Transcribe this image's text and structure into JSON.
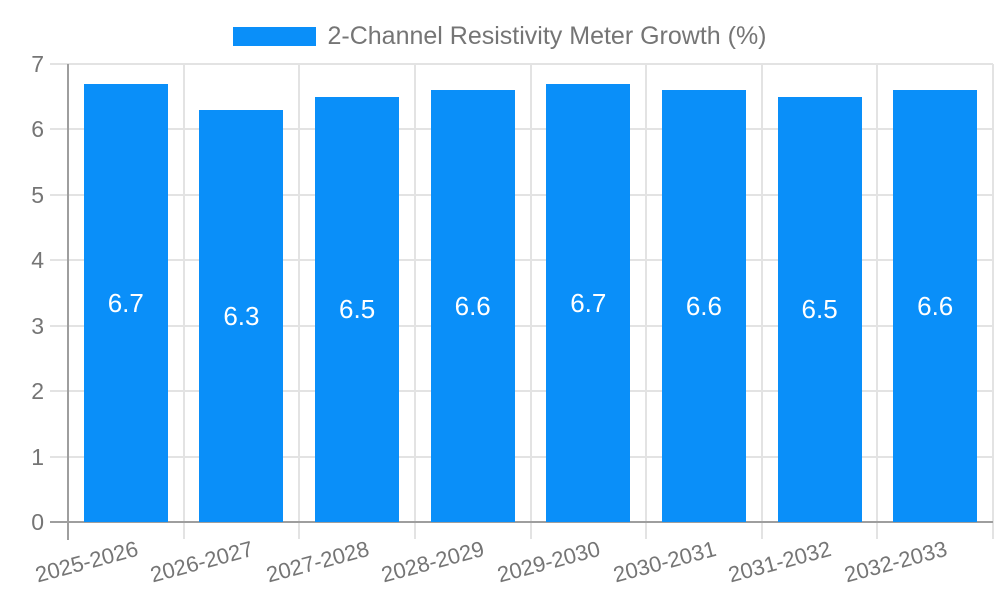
{
  "chart_data": {
    "type": "bar",
    "title": "2-Channel Resistivity Meter Growth (%)",
    "categories": [
      "2025-2026",
      "2026-2027",
      "2027-2028",
      "2028-2029",
      "2029-2030",
      "2030-2031",
      "2031-2032",
      "2032-2033"
    ],
    "values": [
      6.7,
      6.3,
      6.5,
      6.6,
      6.7,
      6.6,
      6.5,
      6.6
    ],
    "bar_labels": [
      "6.7",
      "6.3",
      "6.5",
      "6.6",
      "6.7",
      "6.6",
      "6.5",
      "6.6"
    ],
    "xlabel": "",
    "ylabel": "",
    "ylim": [
      0,
      7
    ],
    "yticks": [
      0,
      1,
      2,
      3,
      4,
      5,
      6,
      7
    ],
    "grid": true,
    "legend_position": "top-center",
    "colors": {
      "bar": "#0A8FF9",
      "grid": "#E3E3E3",
      "axis": "#9E9E9E",
      "text": "#757575",
      "bar_label": "#FFFFFF"
    }
  }
}
